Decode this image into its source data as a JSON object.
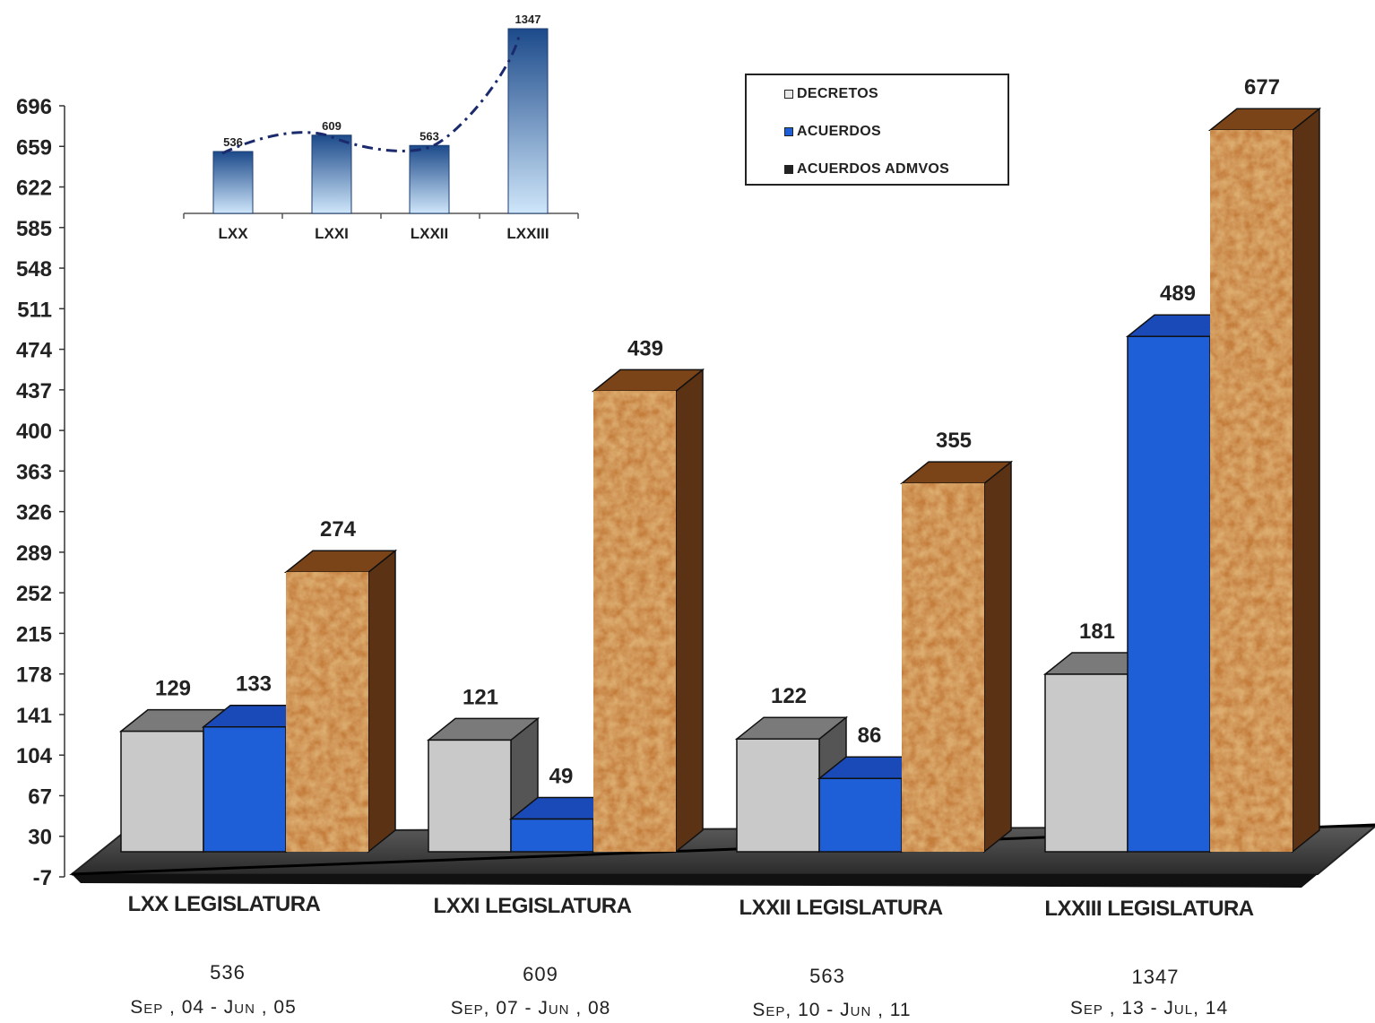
{
  "colors": {
    "decretos": "#c9c9c9",
    "acuerdos": "#1e5fd8",
    "acuerdos_admvos": "#b46a2c",
    "floor": "#3a3a3a",
    "inset_bar": "#1f4f8f",
    "inset_line": "#1a2a6c"
  },
  "legend": {
    "items": [
      {
        "label": "DECRETOS",
        "color": "#c9c9c9"
      },
      {
        "label": "ACUERDOS",
        "color": "#1e5fd8"
      },
      {
        "label": "ACUERDOS ADMVOS",
        "color": "#222222"
      }
    ]
  },
  "chart_data": [
    {
      "type": "bar",
      "style": "3d-clustered",
      "categories": [
        "LXX  LEGISLATURA",
        "LXXI  LEGISLATURA",
        "LXXII LEGISLATURA",
        "LXXIII LEGISLATURA"
      ],
      "totals": [
        "536",
        "609",
        "563",
        "1347"
      ],
      "periods": [
        "Sep , 04 - Jun , 05",
        "Sep, 07 - Jun , 08",
        "Sep,  10 - Jun , 11",
        "Sep , 13 - Jul, 14"
      ],
      "series": [
        {
          "name": "DECRETOS",
          "values": [
            129,
            121,
            122,
            181
          ]
        },
        {
          "name": "ACUERDOS",
          "values": [
            133,
            49,
            86,
            489
          ]
        },
        {
          "name": "ACUERDOS ADMVOS",
          "values": [
            274,
            439,
            355,
            677
          ]
        }
      ],
      "yticks": [
        -7,
        30,
        67,
        104,
        141,
        178,
        215,
        252,
        289,
        326,
        363,
        400,
        437,
        474,
        511,
        548,
        585,
        622,
        659,
        696
      ],
      "ylim": [
        -7,
        696
      ],
      "legend_position": "top-right",
      "grid": false
    },
    {
      "type": "bar",
      "style": "inset-with-trendline",
      "categories": [
        "LXX",
        "LXXI",
        "LXXII",
        "LXXIII"
      ],
      "values": [
        536,
        609,
        563,
        1347
      ],
      "trendline": true
    }
  ]
}
